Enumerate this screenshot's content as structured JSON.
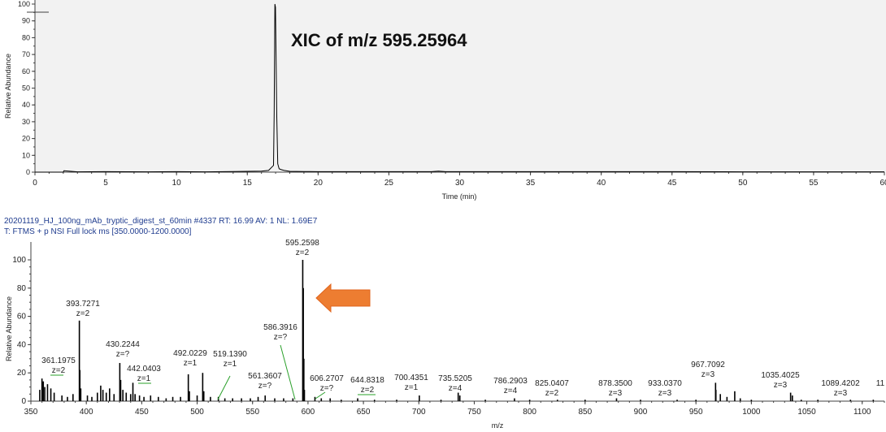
{
  "chart_data": [
    {
      "type": "line",
      "annotation": "XIC of m/z 595.25964",
      "xlabel": "Time (min)",
      "ylabel": "Relative Abundance",
      "xlim": [
        0,
        60
      ],
      "ylim": [
        0,
        100
      ],
      "x_ticks": [
        0,
        5,
        10,
        15,
        20,
        25,
        30,
        35,
        40,
        45,
        50,
        55,
        60
      ],
      "y_ticks": [
        0,
        10,
        20,
        30,
        40,
        50,
        60,
        70,
        80,
        90,
        100
      ],
      "grid": false,
      "colors": {
        "axes": "#404040",
        "trace": "#000000",
        "plot_bg": "#f2f2f2"
      },
      "series": [
        {
          "x": [
            0,
            2,
            2.05,
            3,
            5,
            8,
            10,
            12,
            14,
            15,
            16,
            16.5,
            16.85,
            16.9,
            16.95,
            16.99,
            17.03,
            17.08,
            17.15,
            17.25,
            17.4,
            17.6,
            18,
            19,
            20,
            22,
            25,
            28,
            28.5,
            29,
            32,
            35,
            40,
            45,
            50,
            55,
            60
          ],
          "y": [
            0,
            0,
            0.8,
            0.2,
            0.3,
            0.2,
            0.3,
            0.2,
            0.4,
            0.5,
            0.6,
            1,
            4,
            35,
            100,
            98,
            70,
            33,
            5,
            2,
            1.5,
            1,
            0.5,
            0.4,
            0.3,
            0.3,
            0.3,
            0.3,
            0.6,
            0.3,
            0.3,
            0.3,
            0.3,
            0.3,
            0.2,
            0.2,
            0.2
          ]
        }
      ]
    },
    {
      "type": "bar",
      "scan_header": "20201119_HJ_100ng_mAb_tryptic_digest_st_60min #4337   RT: 16.99   AV: 1   NL: 1.69E7",
      "scan_filter": "T: FTMS + p NSI Full lock ms [350.0000-1200.0000]",
      "xlabel": "m/z",
      "ylabel": "Relative Abundance",
      "xlim": [
        350,
        1120
      ],
      "ylim": [
        0,
        100
      ],
      "x_ticks": [
        350,
        400,
        450,
        500,
        550,
        600,
        650,
        700,
        750,
        800,
        850,
        900,
        950,
        1000,
        1050,
        1100
      ],
      "y_ticks": [
        0,
        20,
        40,
        60,
        80,
        100
      ],
      "grid": false,
      "colors": {
        "axes": "#404040",
        "peaks": "#000000",
        "leader": "#2aa02a",
        "arrow": "#ed7d31",
        "plot_bg": "#ffffff"
      },
      "peaks": [
        {
          "mz": 358.0,
          "rel": 8
        },
        {
          "mz": 360.0,
          "rel": 16
        },
        {
          "mz": 361.2,
          "rel": 14
        },
        {
          "mz": 362.5,
          "rel": 10
        },
        {
          "mz": 365.0,
          "rel": 12
        },
        {
          "mz": 368.0,
          "rel": 9
        },
        {
          "mz": 371.0,
          "rel": 6
        },
        {
          "mz": 378.0,
          "rel": 4
        },
        {
          "mz": 383.0,
          "rel": 3
        },
        {
          "mz": 388.0,
          "rel": 5
        },
        {
          "mz": 393.73,
          "rel": 57
        },
        {
          "mz": 394.2,
          "rel": 22
        },
        {
          "mz": 395.0,
          "rel": 9
        },
        {
          "mz": 401.0,
          "rel": 4
        },
        {
          "mz": 405.0,
          "rel": 3
        },
        {
          "mz": 410.0,
          "rel": 6
        },
        {
          "mz": 413.0,
          "rel": 11
        },
        {
          "mz": 415.0,
          "rel": 8
        },
        {
          "mz": 418.0,
          "rel": 6
        },
        {
          "mz": 421.0,
          "rel": 9
        },
        {
          "mz": 425.0,
          "rel": 5
        },
        {
          "mz": 430.22,
          "rel": 27
        },
        {
          "mz": 431.0,
          "rel": 15
        },
        {
          "mz": 433.0,
          "rel": 8
        },
        {
          "mz": 436.0,
          "rel": 6
        },
        {
          "mz": 440.0,
          "rel": 5
        },
        {
          "mz": 442.04,
          "rel": 13
        },
        {
          "mz": 444.0,
          "rel": 5
        },
        {
          "mz": 448.0,
          "rel": 4
        },
        {
          "mz": 452.0,
          "rel": 3
        },
        {
          "mz": 458.0,
          "rel": 4
        },
        {
          "mz": 465.0,
          "rel": 3
        },
        {
          "mz": 472.0,
          "rel": 2
        },
        {
          "mz": 478.0,
          "rel": 3
        },
        {
          "mz": 485.0,
          "rel": 3
        },
        {
          "mz": 492.02,
          "rel": 19
        },
        {
          "mz": 493.0,
          "rel": 7
        },
        {
          "mz": 500.0,
          "rel": 4
        },
        {
          "mz": 505.0,
          "rel": 20
        },
        {
          "mz": 506.0,
          "rel": 7
        },
        {
          "mz": 512.0,
          "rel": 3
        },
        {
          "mz": 519.14,
          "rel": 3
        },
        {
          "mz": 525.0,
          "rel": 2
        },
        {
          "mz": 532.0,
          "rel": 2
        },
        {
          "mz": 540.0,
          "rel": 2
        },
        {
          "mz": 548.0,
          "rel": 2
        },
        {
          "mz": 555.0,
          "rel": 3
        },
        {
          "mz": 561.36,
          "rel": 4
        },
        {
          "mz": 570.0,
          "rel": 2
        },
        {
          "mz": 578.0,
          "rel": 2
        },
        {
          "mz": 586.39,
          "rel": 2
        },
        {
          "mz": 595.26,
          "rel": 100
        },
        {
          "mz": 595.76,
          "rel": 80
        },
        {
          "mz": 596.26,
          "rel": 30
        },
        {
          "mz": 596.76,
          "rel": 8
        },
        {
          "mz": 606.27,
          "rel": 3
        },
        {
          "mz": 612.0,
          "rel": 2
        },
        {
          "mz": 620.0,
          "rel": 2
        },
        {
          "mz": 630.0,
          "rel": 1
        },
        {
          "mz": 644.83,
          "rel": 2
        },
        {
          "mz": 660.0,
          "rel": 1
        },
        {
          "mz": 680.0,
          "rel": 1
        },
        {
          "mz": 700.44,
          "rel": 4
        },
        {
          "mz": 720.0,
          "rel": 1
        },
        {
          "mz": 735.52,
          "rel": 6
        },
        {
          "mz": 737.0,
          "rel": 4
        },
        {
          "mz": 760.0,
          "rel": 1
        },
        {
          "mz": 786.29,
          "rel": 2
        },
        {
          "mz": 800.0,
          "rel": 1
        },
        {
          "mz": 825.04,
          "rel": 1
        },
        {
          "mz": 850.0,
          "rel": 1
        },
        {
          "mz": 878.35,
          "rel": 2
        },
        {
          "mz": 900.0,
          "rel": 1
        },
        {
          "mz": 933.04,
          "rel": 1
        },
        {
          "mz": 950.0,
          "rel": 1
        },
        {
          "mz": 967.71,
          "rel": 13
        },
        {
          "mz": 968.0,
          "rel": 8
        },
        {
          "mz": 972.0,
          "rel": 5
        },
        {
          "mz": 978.0,
          "rel": 3
        },
        {
          "mz": 985.0,
          "rel": 7
        },
        {
          "mz": 990.0,
          "rel": 2
        },
        {
          "mz": 1000.0,
          "rel": 1
        },
        {
          "mz": 1035.4,
          "rel": 6
        },
        {
          "mz": 1037.0,
          "rel": 4
        },
        {
          "mz": 1045.0,
          "rel": 1
        },
        {
          "mz": 1060.0,
          "rel": 1
        },
        {
          "mz": 1089.42,
          "rel": 1
        },
        {
          "mz": 1110.0,
          "rel": 1
        }
      ],
      "labels": [
        {
          "mz_text": "361.1975",
          "z_text": "z=2",
          "mz": 361.2
        },
        {
          "mz_text": "393.7271",
          "z_text": "z=2",
          "mz": 393.73
        },
        {
          "mz_text": "430.2244",
          "z_text": "z=?",
          "mz": 430.22
        },
        {
          "mz_text": "442.0403",
          "z_text": "z=1",
          "mz": 442.04
        },
        {
          "mz_text": "492.0229",
          "z_text": "z=1",
          "mz": 492.02
        },
        {
          "mz_text": "519.1390",
          "z_text": "z=1",
          "mz": 519.14
        },
        {
          "mz_text": "561.3607",
          "z_text": "z=?",
          "mz": 561.36
        },
        {
          "mz_text": "586.3916",
          "z_text": "z=?",
          "mz": 586.39
        },
        {
          "mz_text": "595.2598",
          "z_text": "z=2",
          "mz": 595.26
        },
        {
          "mz_text": "606.2707",
          "z_text": "z=?",
          "mz": 606.27
        },
        {
          "mz_text": "644.8318",
          "z_text": "z=2",
          "mz": 644.83
        },
        {
          "mz_text": "700.4351",
          "z_text": "z=1",
          "mz": 700.44
        },
        {
          "mz_text": "735.5205",
          "z_text": "z=4",
          "mz": 735.52
        },
        {
          "mz_text": "786.2903",
          "z_text": "z=4",
          "mz": 786.29
        },
        {
          "mz_text": "825.0407",
          "z_text": "z=2",
          "mz": 825.04
        },
        {
          "mz_text": "878.3500",
          "z_text": "z=3",
          "mz": 878.35
        },
        {
          "mz_text": "933.0370",
          "z_text": "z=3",
          "mz": 933.04
        },
        {
          "mz_text": "967.7092",
          "z_text": "z=3",
          "mz": 967.71
        },
        {
          "mz_text": "1035.4025",
          "z_text": "z=3",
          "mz": 1035.4
        },
        {
          "mz_text": "1089.4202",
          "z_text": "z=3",
          "mz": 1089.42
        },
        {
          "mz_text": "11",
          "z_text": "",
          "mz": 1115
        }
      ]
    }
  ]
}
